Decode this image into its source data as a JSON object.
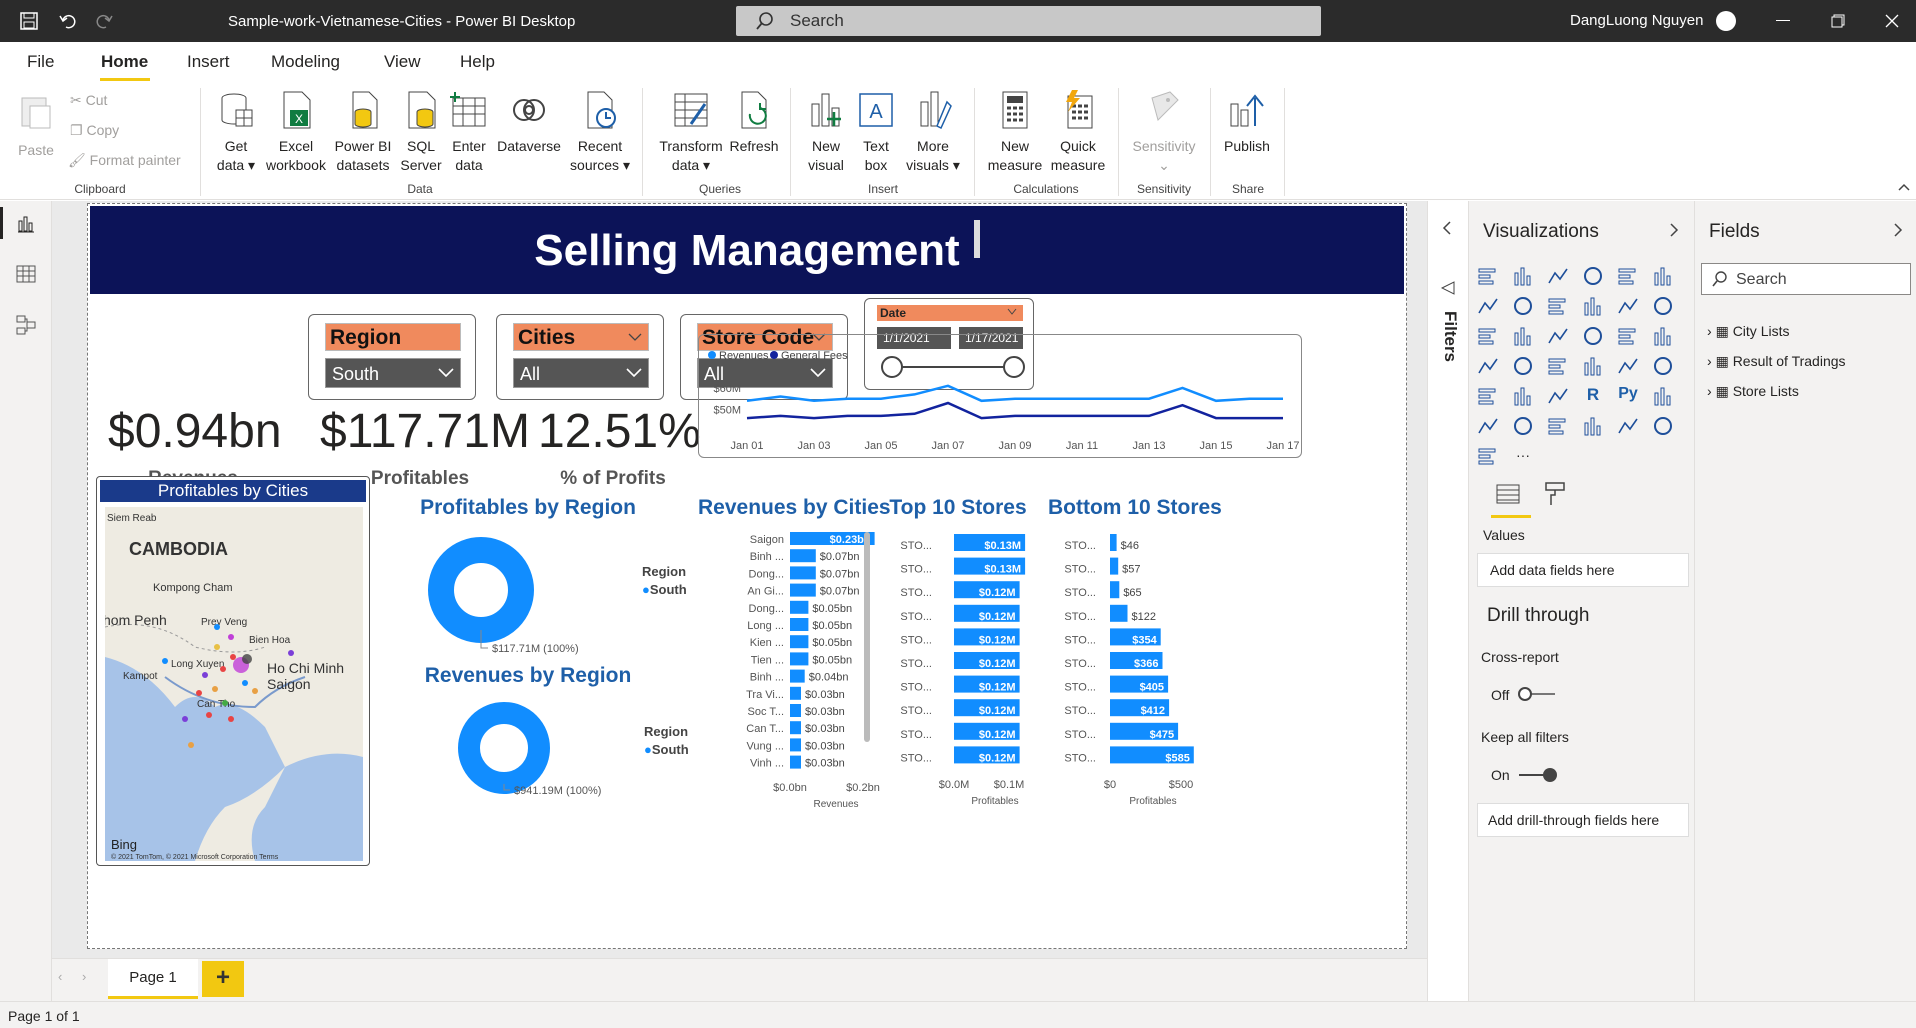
{
  "titlebar": {
    "doc_title": "Sample-work-Vietnamese-Cities - Power BI Desktop",
    "search_placeholder": "Search",
    "user_name": "DangLuong Nguyen"
  },
  "menu": [
    "File",
    "Home",
    "Insert",
    "Modeling",
    "View",
    "Help"
  ],
  "ribbon": {
    "clipboard": {
      "paste": "Paste",
      "cut": "Cut",
      "copy": "Copy",
      "format_painter": "Format painter",
      "group": "Clipboard"
    },
    "data": {
      "get_data": "Get data",
      "excel": "Excel workbook",
      "pbi_datasets": "Power BI datasets",
      "sql": "SQL Server",
      "enter": "Enter data",
      "dataverse": "Dataverse",
      "recent": "Recent sources",
      "group": "Data"
    },
    "queries": {
      "transform": "Transform data",
      "refresh": "Refresh",
      "group": "Queries"
    },
    "insert": {
      "new_visual": "New visual",
      "text_box": "Text box",
      "more_visuals": "More visuals",
      "group": "Insert"
    },
    "calculations": {
      "new_measure": "New measure",
      "quick_measure": "Quick measure",
      "group": "Calculations"
    },
    "sensitivity": {
      "label": "Sensitivity",
      "group": "Sensitivity"
    },
    "share": {
      "publish": "Publish",
      "group": "Share"
    }
  },
  "report": {
    "title": "Selling Management",
    "slicers": {
      "region": {
        "label": "Region",
        "value": "South"
      },
      "cities": {
        "label": "Cities",
        "value": "All"
      },
      "store": {
        "label": "Store Code",
        "value": "All"
      },
      "date": {
        "label": "Date",
        "from": "1/1/2021",
        "to": "1/17/2021"
      }
    },
    "kpis": [
      {
        "value": "$0.94bn",
        "label": "Revenues"
      },
      {
        "value": "$117.71M",
        "label": "Profitables"
      },
      {
        "value": "12.51%",
        "label": "% of Profits"
      }
    ],
    "map": {
      "title": "Profitables by Cities",
      "labels": [
        "Siem Reab",
        "CAMBODIA",
        "Kompong Cham",
        "hom Penh",
        "Prey Veng",
        "Bien Hoa",
        "Ho Chi Minh",
        "Saigon",
        "Kampot",
        "Long Xuyen",
        "Can Tho"
      ],
      "bing": "Bing",
      "copyright": "© 2021 TomTom, © 2021 Microsoft Corporation  Terms"
    },
    "profit_region": {
      "title": "Profitables by Region",
      "legend_title": "Region",
      "legend_item": "South",
      "label": "$117.71M (100%)"
    },
    "revenue_region": {
      "title": "Revenues by Region",
      "legend_title": "Region",
      "legend_item": "South",
      "label": "$941.19M (100%)"
    },
    "pane": {
      "filters": "Filters",
      "viz_title": "Visualizations",
      "fields_title": "Fields",
      "fields_search": "Search",
      "tables": [
        "City Lists",
        "Result of Tradings",
        "Store Lists"
      ],
      "values_label": "Values",
      "add_data": "Add data fields here",
      "drill_through": "Drill through",
      "cross_report": "Cross-report",
      "off": "Off",
      "keep_filters": "Keep all filters",
      "on": "On",
      "add_drill": "Add drill-through fields here"
    },
    "page_tab": "Page 1",
    "status": "Page 1 of 1"
  },
  "chart_data": [
    {
      "type": "line",
      "title": "",
      "legend": [
        "Revenues",
        "General Fees"
      ],
      "x": [
        "Jan 01",
        "Jan 02",
        "Jan 03",
        "Jan 04",
        "Jan 05",
        "Jan 06",
        "Jan 07",
        "Jan 08",
        "Jan 09",
        "Jan 10",
        "Jan 11",
        "Jan 12",
        "Jan 13",
        "Jan 14",
        "Jan 15",
        "Jan 16",
        "Jan 17"
      ],
      "xticks": [
        "Jan 01",
        "Jan 03",
        "Jan 05",
        "Jan 07",
        "Jan 09",
        "Jan 11",
        "Jan 13",
        "Jan 15",
        "Jan 17"
      ],
      "yticks": [
        "$60M",
        "$50M"
      ],
      "series": [
        {
          "name": "Revenues",
          "color": "#118dff",
          "values": [
            54,
            56,
            54,
            55,
            55,
            57,
            61,
            54,
            55,
            55,
            55,
            55,
            55,
            60,
            54,
            55,
            55
          ]
        },
        {
          "name": "General Fees",
          "color": "#12239e",
          "values": [
            46,
            47,
            46,
            47,
            47,
            48,
            53,
            46,
            47,
            47,
            47,
            47,
            47,
            52,
            46,
            46,
            46
          ]
        }
      ],
      "ylim": [
        40,
        66
      ]
    },
    {
      "type": "bar",
      "title": "Revenues by Cities",
      "xlabel": "Revenues",
      "xticks": [
        "$0.0bn",
        "$0.2bn"
      ],
      "xlim": [
        0,
        0.25
      ],
      "categories": [
        "Saigon",
        "Binh ...",
        "Dong...",
        "An Gi...",
        "Dong...",
        "Long ...",
        "Kien ...",
        "Tien ...",
        "Binh ...",
        "Tra Vi...",
        "Soc T...",
        "Can T...",
        "Vung ...",
        "Vinh ..."
      ],
      "values": [
        0.23,
        0.07,
        0.07,
        0.07,
        0.05,
        0.05,
        0.05,
        0.05,
        0.04,
        0.03,
        0.03,
        0.03,
        0.03,
        0.03
      ],
      "labels": [
        "$0.23bn",
        "$0.07bn",
        "$0.07bn",
        "$0.07bn",
        "$0.05bn",
        "$0.05bn",
        "$0.05bn",
        "$0.05bn",
        "$0.04bn",
        "$0.03bn",
        "$0.03bn",
        "$0.03bn",
        "$0.03bn",
        "$0.03bn"
      ]
    },
    {
      "type": "bar",
      "title": "Top 10 Stores",
      "xlabel": "Profitables",
      "xticks": [
        "$0.0M",
        "$0.1M"
      ],
      "xlim": [
        0,
        0.15
      ],
      "categories": [
        "STO...",
        "STO...",
        "STO...",
        "STO...",
        "STO...",
        "STO...",
        "STO...",
        "STO...",
        "STO...",
        "STO..."
      ],
      "values": [
        0.13,
        0.13,
        0.12,
        0.12,
        0.12,
        0.12,
        0.12,
        0.12,
        0.12,
        0.12
      ],
      "labels": [
        "$0.13M",
        "$0.13M",
        "$0.12M",
        "$0.12M",
        "$0.12M",
        "$0.12M",
        "$0.12M",
        "$0.12M",
        "$0.12M",
        "$0.12M"
      ]
    },
    {
      "type": "bar",
      "title": "Bottom 10 Stores",
      "xlabel": "Profitables",
      "xticks": [
        "$0",
        "$500"
      ],
      "xlim": [
        0,
        600
      ],
      "categories": [
        "STO...",
        "STO...",
        "STO...",
        "STO...",
        "STO...",
        "STO...",
        "STO...",
        "STO...",
        "STO...",
        "STO..."
      ],
      "values": [
        46,
        57,
        65,
        122,
        354,
        366,
        405,
        412,
        475,
        585
      ],
      "labels": [
        "$46",
        "$57",
        "$65",
        "$122",
        "$354",
        "$366",
        "$405",
        "$412",
        "$475",
        "$585"
      ]
    },
    {
      "type": "pie",
      "title": "Profitables by Region",
      "categories": [
        "South"
      ],
      "values": [
        117.71
      ]
    },
    {
      "type": "pie",
      "title": "Revenues by Region",
      "categories": [
        "South"
      ],
      "values": [
        941.19
      ]
    }
  ]
}
